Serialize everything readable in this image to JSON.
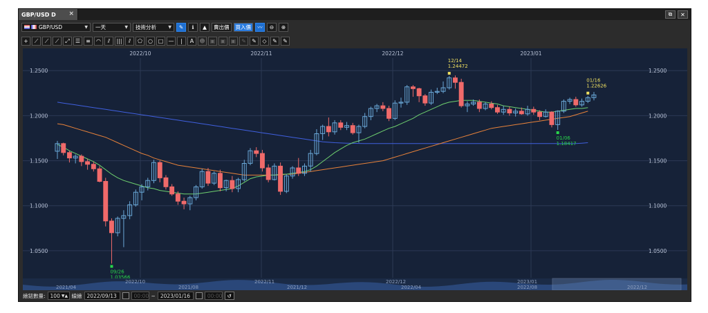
{
  "window": {
    "tab_title": "GBP/USD D",
    "tab_close": "×",
    "restore": "⧉",
    "close": "✕"
  },
  "toolbar": {
    "symbol": "GBP/USD",
    "period": "一天",
    "analysis": "技術分析",
    "btn_info": "ℹ",
    "btn_sell": "賣出價",
    "btn_buy": "買入價",
    "zoom_in": "⊕",
    "zoom_out": "⊖"
  },
  "drawing_tools": [
    "+",
    "⟋",
    "⟋",
    "⟋",
    "⤢",
    "☰",
    "≡",
    "◠",
    "⫽",
    "|||",
    "⫽",
    "⬠",
    "○",
    "□",
    "—",
    "|",
    "A",
    "☻",
    "▣",
    "▣",
    "▣",
    "✎",
    "✎",
    "◇",
    "✎",
    "✎"
  ],
  "chart_data": {
    "type": "candlestick",
    "symbol": "GBP/USD",
    "timeframe": "D",
    "top_axis_labels": [
      "2022/10",
      "2022/11",
      "2022/12",
      "2023/01"
    ],
    "price_ticks": [
      "1.2500",
      "1.2000",
      "1.1500",
      "1.1000",
      "1.0500"
    ],
    "ylim": [
      1.02,
      1.264
    ],
    "candles": [
      [
        1.1605,
        1.172,
        1.152,
        1.169
      ],
      [
        1.169,
        1.17,
        1.156,
        1.159
      ],
      [
        1.159,
        1.161,
        1.148,
        1.153
      ],
      [
        1.153,
        1.157,
        1.147,
        1.155
      ],
      [
        1.155,
        1.157,
        1.144,
        1.149
      ],
      [
        1.149,
        1.152,
        1.14,
        1.146
      ],
      [
        1.146,
        1.149,
        1.138,
        1.141
      ],
      [
        1.141,
        1.144,
        1.126,
        1.127
      ],
      [
        1.127,
        1.131,
        1.077,
        1.083
      ],
      [
        1.083,
        1.086,
        1.0357,
        1.07
      ],
      [
        1.07,
        1.088,
        1.066,
        1.086
      ],
      [
        1.086,
        1.095,
        1.054,
        1.089
      ],
      [
        1.089,
        1.105,
        1.085,
        1.101
      ],
      [
        1.101,
        1.118,
        1.099,
        1.115
      ],
      [
        1.115,
        1.124,
        1.106,
        1.121
      ],
      [
        1.121,
        1.131,
        1.117,
        1.128
      ],
      [
        1.128,
        1.151,
        1.125,
        1.148
      ],
      [
        1.148,
        1.15,
        1.126,
        1.131
      ],
      [
        1.131,
        1.134,
        1.118,
        1.121
      ],
      [
        1.121,
        1.124,
        1.111,
        1.113
      ],
      [
        1.113,
        1.116,
        1.101,
        1.105
      ],
      [
        1.105,
        1.109,
        1.096,
        1.102
      ],
      [
        1.102,
        1.111,
        1.095,
        1.109
      ],
      [
        1.109,
        1.123,
        1.106,
        1.121
      ],
      [
        1.121,
        1.141,
        1.119,
        1.138
      ],
      [
        1.138,
        1.142,
        1.122,
        1.125
      ],
      [
        1.125,
        1.138,
        1.123,
        1.136
      ],
      [
        1.136,
        1.14,
        1.116,
        1.12
      ],
      [
        1.12,
        1.129,
        1.116,
        1.128
      ],
      [
        1.128,
        1.133,
        1.115,
        1.119
      ],
      [
        1.119,
        1.131,
        1.115,
        1.129
      ],
      [
        1.129,
        1.151,
        1.127,
        1.147
      ],
      [
        1.147,
        1.164,
        1.145,
        1.161
      ],
      [
        1.161,
        1.165,
        1.154,
        1.158
      ],
      [
        1.158,
        1.162,
        1.138,
        1.142
      ],
      [
        1.142,
        1.146,
        1.126,
        1.129
      ],
      [
        1.129,
        1.147,
        1.128,
        1.144
      ],
      [
        1.144,
        1.148,
        1.112,
        1.116
      ],
      [
        1.116,
        1.135,
        1.114,
        1.133
      ],
      [
        1.133,
        1.144,
        1.13,
        1.142
      ],
      [
        1.142,
        1.153,
        1.133,
        1.136
      ],
      [
        1.136,
        1.147,
        1.133,
        1.144
      ],
      [
        1.144,
        1.162,
        1.138,
        1.158
      ],
      [
        1.158,
        1.185,
        1.156,
        1.18
      ],
      [
        1.18,
        1.19,
        1.173,
        1.188
      ],
      [
        1.188,
        1.198,
        1.177,
        1.182
      ],
      [
        1.182,
        1.195,
        1.179,
        1.192
      ],
      [
        1.192,
        1.195,
        1.184,
        1.187
      ],
      [
        1.187,
        1.193,
        1.184,
        1.189
      ],
      [
        1.189,
        1.192,
        1.179,
        1.181
      ],
      [
        1.181,
        1.19,
        1.17,
        1.188
      ],
      [
        1.188,
        1.203,
        1.186,
        1.199
      ],
      [
        1.199,
        1.21,
        1.195,
        1.208
      ],
      [
        1.208,
        1.213,
        1.204,
        1.211
      ],
      [
        1.211,
        1.215,
        1.205,
        1.208
      ],
      [
        1.208,
        1.211,
        1.194,
        1.197
      ],
      [
        1.197,
        1.217,
        1.195,
        1.214
      ],
      [
        1.214,
        1.22,
        1.209,
        1.215
      ],
      [
        1.215,
        1.234,
        1.212,
        1.232
      ],
      [
        1.232,
        1.234,
        1.221,
        1.23
      ],
      [
        1.23,
        1.231,
        1.215,
        1.222
      ],
      [
        1.222,
        1.224,
        1.211,
        1.214
      ],
      [
        1.214,
        1.229,
        1.212,
        1.226
      ],
      [
        1.226,
        1.231,
        1.224,
        1.227
      ],
      [
        1.227,
        1.238,
        1.225,
        1.231
      ],
      [
        1.231,
        1.244,
        1.229,
        1.242
      ],
      [
        1.242,
        1.2447,
        1.23,
        1.237
      ],
      [
        1.237,
        1.241,
        1.209,
        1.211
      ],
      [
        1.211,
        1.216,
        1.204,
        1.213
      ],
      [
        1.213,
        1.218,
        1.211,
        1.215
      ],
      [
        1.215,
        1.218,
        1.204,
        1.208
      ],
      [
        1.208,
        1.215,
        1.206,
        1.213
      ],
      [
        1.213,
        1.216,
        1.207,
        1.209
      ],
      [
        1.209,
        1.212,
        1.202,
        1.204
      ],
      [
        1.204,
        1.211,
        1.201,
        1.207
      ],
      [
        1.207,
        1.21,
        1.2,
        1.203
      ],
      [
        1.203,
        1.208,
        1.199,
        1.205
      ],
      [
        1.205,
        1.209,
        1.201,
        1.202
      ],
      [
        1.202,
        1.211,
        1.2,
        1.207
      ],
      [
        1.207,
        1.21,
        1.201,
        1.204
      ],
      [
        1.204,
        1.206,
        1.195,
        1.199
      ],
      [
        1.199,
        1.207,
        1.198,
        1.204
      ],
      [
        1.204,
        1.205,
        1.187,
        1.19
      ],
      [
        1.19,
        1.206,
        1.1842,
        1.205
      ],
      [
        1.205,
        1.218,
        1.203,
        1.216
      ],
      [
        1.216,
        1.22,
        1.213,
        1.218
      ],
      [
        1.218,
        1.221,
        1.21,
        1.212
      ],
      [
        1.212,
        1.219,
        1.21,
        1.216
      ],
      [
        1.216,
        1.222,
        1.214,
        1.22
      ],
      [
        1.22,
        1.2263,
        1.217,
        1.223
      ]
    ],
    "ma_short": [
      1.168,
      1.165,
      1.161,
      1.158,
      1.155,
      1.152,
      1.149,
      1.145,
      1.14,
      1.135,
      1.131,
      1.128,
      1.126,
      1.124,
      1.122,
      1.12,
      1.119,
      1.117,
      1.116,
      1.115,
      1.114,
      1.113,
      1.113,
      1.113,
      1.114,
      1.115,
      1.116,
      1.117,
      1.118,
      1.119,
      1.122,
      1.126,
      1.13,
      1.132,
      1.133,
      1.134,
      1.134,
      1.135,
      1.135,
      1.136,
      1.137,
      1.138,
      1.14,
      1.144,
      1.149,
      1.154,
      1.159,
      1.163,
      1.167,
      1.17,
      1.172,
      1.174,
      1.177,
      1.18,
      1.183,
      1.186,
      1.188,
      1.191,
      1.194,
      1.197,
      1.201,
      1.204,
      1.207,
      1.21,
      1.213,
      1.215,
      1.216,
      1.217,
      1.217,
      1.217,
      1.216,
      1.215,
      1.214,
      1.213,
      1.211,
      1.21,
      1.209,
      1.208,
      1.207,
      1.206,
      1.205,
      1.204,
      1.204,
      1.205,
      1.206,
      1.207,
      1.208,
      1.208,
      1.209
    ],
    "ma_medium": [
      1.191,
      1.19,
      1.188,
      1.186,
      1.184,
      1.182,
      1.18,
      1.178,
      1.176,
      1.173,
      1.17,
      1.167,
      1.164,
      1.161,
      1.158,
      1.156,
      1.153,
      1.151,
      1.149,
      1.147,
      1.145,
      1.144,
      1.143,
      1.142,
      1.141,
      1.14,
      1.139,
      1.138,
      1.137,
      1.136,
      1.135,
      1.134,
      1.134,
      1.134,
      1.134,
      1.134,
      1.134,
      1.134,
      1.135,
      1.135,
      1.136,
      1.137,
      1.138,
      1.139,
      1.14,
      1.141,
      1.142,
      1.143,
      1.144,
      1.145,
      1.146,
      1.147,
      1.148,
      1.149,
      1.15,
      1.152,
      1.154,
      1.156,
      1.158,
      1.16,
      1.162,
      1.164,
      1.166,
      1.168,
      1.17,
      1.172,
      1.174,
      1.176,
      1.178,
      1.18,
      1.182,
      1.184,
      1.186,
      1.187,
      1.188,
      1.189,
      1.19,
      1.191,
      1.192,
      1.193,
      1.194,
      1.195,
      1.196,
      1.197,
      1.198,
      1.199,
      1.201,
      1.203,
      1.205
    ],
    "ma_long": [
      1.215,
      1.214,
      1.213,
      1.212,
      1.211,
      1.21,
      1.209,
      1.208,
      1.207,
      1.206,
      1.205,
      1.204,
      1.203,
      1.202,
      1.201,
      1.2,
      1.199,
      1.198,
      1.197,
      1.196,
      1.195,
      1.194,
      1.193,
      1.192,
      1.191,
      1.19,
      1.189,
      1.188,
      1.187,
      1.186,
      1.185,
      1.184,
      1.183,
      1.182,
      1.181,
      1.18,
      1.179,
      1.178,
      1.177,
      1.176,
      1.175,
      1.174,
      1.173,
      1.172,
      1.171,
      1.1705,
      1.17,
      1.1697,
      1.1695,
      1.1693,
      1.1692,
      1.1691,
      1.169,
      1.169,
      1.169,
      1.169,
      1.169,
      1.169,
      1.169,
      1.169,
      1.169,
      1.169,
      1.169,
      1.169,
      1.169,
      1.169,
      1.169,
      1.169,
      1.169,
      1.169,
      1.169,
      1.169,
      1.169,
      1.169,
      1.169,
      1.169,
      1.169,
      1.169,
      1.169,
      1.169,
      1.169,
      1.169,
      1.169,
      1.169,
      1.169,
      1.169,
      1.169,
      1.1695,
      1.17
    ],
    "annotations": [
      {
        "index": 9,
        "date": "09/26",
        "price": "1.03566",
        "color": "#29d64a",
        "pos": "below"
      },
      {
        "index": 65,
        "date": "12/14",
        "price": "1.24472",
        "color": "#f0e060",
        "pos": "above"
      },
      {
        "index": 83,
        "date": "01/06",
        "price": "1.18417",
        "color": "#29d64a",
        "pos": "below"
      },
      {
        "index": 88,
        "date": "01/16",
        "price": "1.22626",
        "color": "#f0e060",
        "pos": "above"
      }
    ],
    "nav_labels": [
      "2021/04",
      "2021/08",
      "2021/12",
      "2022/04",
      "2022/08",
      "2022/12"
    ],
    "nav_year_labels": [
      "2022/10",
      "2022/11",
      "2022/12",
      "2023/01"
    ],
    "colors": {
      "up": "#6aa8d8",
      "down": "#f06a6a",
      "ma_short": "#6fd16f",
      "ma_medium": "#e8823a",
      "ma_long": "#4060e0",
      "grid": "#2c3a55",
      "bg": "#162238"
    }
  },
  "bottom": {
    "count_label": "繪鈕數量:",
    "count_value": "100",
    "line_label": "線繪",
    "start_date": "2022/09/13",
    "start_time": "00:00",
    "sep": "~",
    "end_date": "2023/01/16",
    "end_time": "00:00",
    "reset": "↺"
  }
}
